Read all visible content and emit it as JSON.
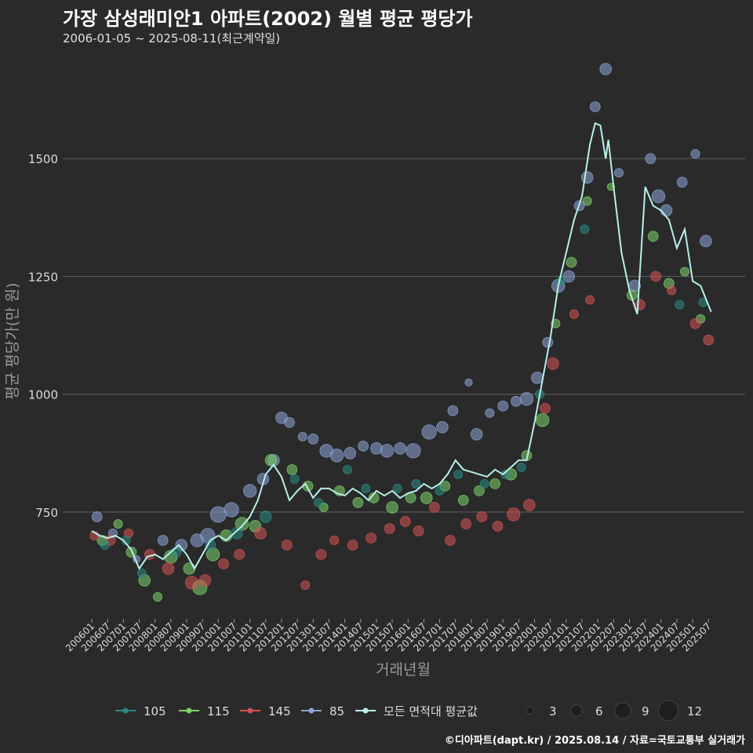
{
  "title": "가장 삼성래미안1 아파트(2002) 월별 평균 평당가",
  "subtitle": "2006-01-05 ~ 2025-08-11(최근계약일)",
  "caption": "©디아파트(dapt.kr) / 2025.08.14 / 자료=국토교통부 실거래가",
  "colors": {
    "background": "#2a2a2b",
    "grid": "#606060",
    "s105": "#2a8a83",
    "s115": "#7cd46a",
    "s145": "#d65252",
    "s85": "#8da4d6",
    "avg": "#b8f0ea"
  },
  "chart_data": {
    "type": "scatter",
    "xlabel": "거래년월",
    "ylabel": "평균 평당가(만 원)",
    "ylim": [
      530,
      1720
    ],
    "y_ticks": [
      750,
      1000,
      1250,
      1500
    ],
    "grid": true,
    "legend_position": "bottom",
    "x_ticks": [
      "200601",
      "200607",
      "200701",
      "200707",
      "200801",
      "200807",
      "200901",
      "200907",
      "201001",
      "201007",
      "201101",
      "201107",
      "201201",
      "201207",
      "201301",
      "201307",
      "201401",
      "201407",
      "201501",
      "201507",
      "201601",
      "201607",
      "201701",
      "201707",
      "201801",
      "201807",
      "201901",
      "201907",
      "202001",
      "202007",
      "202101",
      "202107",
      "202201",
      "202207",
      "202301",
      "202307",
      "202401",
      "202407",
      "202501",
      "202507"
    ],
    "legend_series_labels": [
      "105",
      "115",
      "145",
      "85",
      "모든 면적대 평균값"
    ],
    "size_legend": [
      3,
      6,
      9,
      12
    ],
    "series": [
      {
        "name": "모든 면적대 평균값",
        "kind": "line",
        "points": [
          [
            "2006-01",
            710
          ],
          [
            "2006-04",
            700
          ],
          [
            "2006-07",
            695
          ],
          [
            "2006-10",
            700
          ],
          [
            "2007-01",
            690
          ],
          [
            "2007-04",
            670
          ],
          [
            "2007-07",
            630
          ],
          [
            "2007-10",
            655
          ],
          [
            "2008-01",
            660
          ],
          [
            "2008-04",
            650
          ],
          [
            "2008-07",
            665
          ],
          [
            "2008-10",
            680
          ],
          [
            "2009-01",
            660
          ],
          [
            "2009-04",
            630
          ],
          [
            "2009-07",
            660
          ],
          [
            "2009-10",
            690
          ],
          [
            "2010-01",
            700
          ],
          [
            "2010-04",
            690
          ],
          [
            "2010-07",
            705
          ],
          [
            "2010-10",
            720
          ],
          [
            "2011-01",
            740
          ],
          [
            "2011-04",
            775
          ],
          [
            "2011-07",
            830
          ],
          [
            "2011-10",
            850
          ],
          [
            "2012-01",
            825
          ],
          [
            "2012-04",
            775
          ],
          [
            "2012-07",
            795
          ],
          [
            "2012-10",
            810
          ],
          [
            "2013-01",
            780
          ],
          [
            "2013-04",
            800
          ],
          [
            "2013-07",
            800
          ],
          [
            "2013-10",
            790
          ],
          [
            "2014-01",
            785
          ],
          [
            "2014-04",
            800
          ],
          [
            "2014-07",
            790
          ],
          [
            "2014-10",
            775
          ],
          [
            "2015-01",
            795
          ],
          [
            "2015-04",
            785
          ],
          [
            "2015-07",
            795
          ],
          [
            "2015-10",
            780
          ],
          [
            "2016-01",
            790
          ],
          [
            "2016-04",
            795
          ],
          [
            "2016-07",
            810
          ],
          [
            "2016-10",
            800
          ],
          [
            "2017-01",
            810
          ],
          [
            "2017-04",
            830
          ],
          [
            "2017-07",
            860
          ],
          [
            "2017-10",
            840
          ],
          [
            "2018-01",
            835
          ],
          [
            "2018-04",
            830
          ],
          [
            "2018-07",
            825
          ],
          [
            "2018-10",
            840
          ],
          [
            "2019-01",
            830
          ],
          [
            "2019-04",
            845
          ],
          [
            "2019-07",
            860
          ],
          [
            "2019-10",
            860
          ],
          [
            "2020-01",
            940
          ],
          [
            "2020-04",
            1030
          ],
          [
            "2020-07",
            1120
          ],
          [
            "2020-10",
            1230
          ],
          [
            "2021-01",
            1300
          ],
          [
            "2021-04",
            1370
          ],
          [
            "2021-07",
            1420
          ],
          [
            "2021-10",
            1530
          ],
          [
            "2021-12",
            1575
          ],
          [
            "2022-02",
            1570
          ],
          [
            "2022-04",
            1500
          ],
          [
            "2022-05",
            1540
          ],
          [
            "2022-07",
            1440
          ],
          [
            "2022-10",
            1300
          ],
          [
            "2023-01",
            1220
          ],
          [
            "2023-04",
            1170
          ],
          [
            "2023-07",
            1440
          ],
          [
            "2023-10",
            1400
          ],
          [
            "2024-01",
            1390
          ],
          [
            "2024-04",
            1370
          ],
          [
            "2024-07",
            1310
          ],
          [
            "2024-10",
            1350
          ],
          [
            "2025-01",
            1240
          ],
          [
            "2025-04",
            1230
          ],
          [
            "2025-08",
            1175
          ]
        ]
      },
      {
        "name": "85",
        "kind": "scatter",
        "points": [
          [
            "2006-03",
            740,
            5
          ],
          [
            "2006-09",
            705,
            4
          ],
          [
            "2007-06",
            650,
            3
          ],
          [
            "2008-04",
            690,
            5
          ],
          [
            "2008-11",
            680,
            6
          ],
          [
            "2009-05",
            690,
            7
          ],
          [
            "2009-09",
            700,
            8
          ],
          [
            "2010-01",
            745,
            9
          ],
          [
            "2010-06",
            755,
            8
          ],
          [
            "2011-01",
            795,
            7
          ],
          [
            "2011-06",
            820,
            6
          ],
          [
            "2011-10",
            860,
            6
          ],
          [
            "2012-01",
            950,
            6
          ],
          [
            "2012-04",
            940,
            5
          ],
          [
            "2012-09",
            910,
            4
          ],
          [
            "2013-01",
            905,
            5
          ],
          [
            "2013-06",
            880,
            7
          ],
          [
            "2013-10",
            870,
            7
          ],
          [
            "2014-03",
            875,
            6
          ],
          [
            "2014-08",
            890,
            5
          ],
          [
            "2015-01",
            885,
            6
          ],
          [
            "2015-05",
            880,
            7
          ],
          [
            "2015-10",
            885,
            6
          ],
          [
            "2016-03",
            880,
            8
          ],
          [
            "2016-09",
            920,
            8
          ],
          [
            "2017-02",
            930,
            6
          ],
          [
            "2017-06",
            965,
            5
          ],
          [
            "2017-12",
            1025,
            3
          ],
          [
            "2018-03",
            915,
            6
          ],
          [
            "2018-08",
            960,
            4
          ],
          [
            "2019-01",
            975,
            5
          ],
          [
            "2019-06",
            985,
            5
          ],
          [
            "2019-10",
            990,
            7
          ],
          [
            "2020-02",
            1035,
            6
          ],
          [
            "2020-06",
            1110,
            5
          ],
          [
            "2020-10",
            1230,
            7
          ],
          [
            "2021-02",
            1250,
            6
          ],
          [
            "2021-06",
            1400,
            5
          ],
          [
            "2021-09",
            1460,
            6
          ],
          [
            "2021-12",
            1610,
            5
          ],
          [
            "2022-04",
            1690,
            6
          ],
          [
            "2022-09",
            1470,
            4
          ],
          [
            "2023-03",
            1230,
            6
          ],
          [
            "2023-09",
            1500,
            5
          ],
          [
            "2023-12",
            1420,
            7
          ],
          [
            "2024-03",
            1390,
            6
          ],
          [
            "2024-09",
            1450,
            5
          ],
          [
            "2025-02",
            1510,
            4
          ],
          [
            "2025-06",
            1325,
            6
          ]
        ]
      },
      {
        "name": "115",
        "kind": "scatter",
        "points": [
          [
            "2006-05",
            690,
            5
          ],
          [
            "2006-11",
            725,
            4
          ],
          [
            "2007-04",
            665,
            5
          ],
          [
            "2007-09",
            605,
            6
          ],
          [
            "2008-02",
            570,
            4
          ],
          [
            "2008-07",
            655,
            7
          ],
          [
            "2009-02",
            630,
            6
          ],
          [
            "2009-06",
            590,
            8
          ],
          [
            "2009-11",
            660,
            7
          ],
          [
            "2010-04",
            700,
            6
          ],
          [
            "2010-10",
            725,
            7
          ],
          [
            "2011-03",
            720,
            6
          ],
          [
            "2011-09",
            860,
            6
          ],
          [
            "2012-05",
            840,
            5
          ],
          [
            "2012-11",
            805,
            5
          ],
          [
            "2013-05",
            760,
            4
          ],
          [
            "2013-11",
            795,
            5
          ],
          [
            "2014-06",
            770,
            5
          ],
          [
            "2014-12",
            780,
            5
          ],
          [
            "2015-07",
            760,
            6
          ],
          [
            "2016-02",
            780,
            5
          ],
          [
            "2016-08",
            780,
            6
          ],
          [
            "2017-03",
            805,
            5
          ],
          [
            "2017-10",
            775,
            5
          ],
          [
            "2018-04",
            795,
            5
          ],
          [
            "2018-10",
            810,
            5
          ],
          [
            "2019-04",
            830,
            6
          ],
          [
            "2019-10",
            870,
            5
          ],
          [
            "2020-04",
            945,
            7
          ],
          [
            "2020-09",
            1150,
            4
          ],
          [
            "2021-03",
            1280,
            5
          ],
          [
            "2021-09",
            1410,
            4
          ],
          [
            "2022-06",
            1440,
            3
          ],
          [
            "2023-02",
            1210,
            5
          ],
          [
            "2023-10",
            1335,
            5
          ],
          [
            "2024-04",
            1235,
            5
          ],
          [
            "2024-10",
            1260,
            4
          ],
          [
            "2025-04",
            1160,
            4
          ]
        ]
      },
      {
        "name": "145",
        "kind": "scatter",
        "points": [
          [
            "2006-02",
            700,
            4
          ],
          [
            "2006-08",
            690,
            5
          ],
          [
            "2007-03",
            705,
            4
          ],
          [
            "2007-11",
            660,
            5
          ],
          [
            "2008-06",
            630,
            6
          ],
          [
            "2009-03",
            600,
            7
          ],
          [
            "2009-08",
            605,
            6
          ],
          [
            "2010-03",
            640,
            5
          ],
          [
            "2010-09",
            660,
            5
          ],
          [
            "2011-05",
            705,
            6
          ],
          [
            "2012-03",
            680,
            5
          ],
          [
            "2012-10",
            595,
            4
          ],
          [
            "2013-04",
            660,
            5
          ],
          [
            "2013-09",
            690,
            4
          ],
          [
            "2014-04",
            680,
            5
          ],
          [
            "2014-11",
            695,
            5
          ],
          [
            "2015-06",
            715,
            5
          ],
          [
            "2015-12",
            730,
            5
          ],
          [
            "2016-05",
            710,
            5
          ],
          [
            "2016-11",
            760,
            5
          ],
          [
            "2017-05",
            690,
            5
          ],
          [
            "2017-11",
            725,
            5
          ],
          [
            "2018-05",
            740,
            5
          ],
          [
            "2018-11",
            720,
            5
          ],
          [
            "2019-05",
            745,
            7
          ],
          [
            "2019-11",
            765,
            6
          ],
          [
            "2020-05",
            970,
            5
          ],
          [
            "2020-08",
            1065,
            6
          ],
          [
            "2021-04",
            1170,
            4
          ],
          [
            "2021-10",
            1200,
            4
          ],
          [
            "2023-05",
            1190,
            5
          ],
          [
            "2023-11",
            1250,
            5
          ],
          [
            "2024-05",
            1220,
            4
          ],
          [
            "2025-02",
            1150,
            5
          ],
          [
            "2025-07",
            1115,
            5
          ]
        ]
      },
      {
        "name": "105",
        "kind": "scatter",
        "points": [
          [
            "2006-06",
            680,
            4
          ],
          [
            "2007-02",
            690,
            4
          ],
          [
            "2007-08",
            620,
            4
          ],
          [
            "2008-09",
            665,
            5
          ],
          [
            "2009-10",
            680,
            5
          ],
          [
            "2010-08",
            705,
            6
          ],
          [
            "2011-07",
            740,
            6
          ],
          [
            "2012-06",
            820,
            4
          ],
          [
            "2013-03",
            770,
            4
          ],
          [
            "2014-02",
            840,
            4
          ],
          [
            "2014-09",
            800,
            4
          ],
          [
            "2015-09",
            800,
            4
          ],
          [
            "2016-04",
            810,
            4
          ],
          [
            "2017-01",
            795,
            4
          ],
          [
            "2017-08",
            830,
            4
          ],
          [
            "2018-06",
            810,
            4
          ],
          [
            "2019-02",
            830,
            4
          ],
          [
            "2019-08",
            845,
            4
          ],
          [
            "2020-03",
            1000,
            4
          ],
          [
            "2020-11",
            1240,
            4
          ],
          [
            "2021-08",
            1350,
            4
          ],
          [
            "2024-08",
            1190,
            4
          ],
          [
            "2025-05",
            1195,
            4
          ]
        ]
      }
    ]
  }
}
